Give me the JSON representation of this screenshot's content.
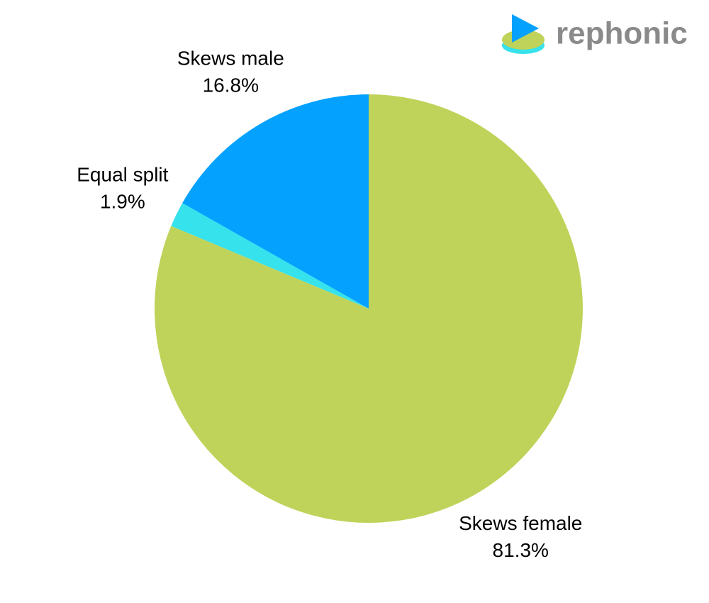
{
  "brand": "rephonic",
  "chart_data": {
    "type": "pie",
    "categories": [
      "Skews female",
      "Equal split",
      "Skews male"
    ],
    "values": [
      81.3,
      1.9,
      16.8
    ],
    "value_labels": [
      "81.3%",
      "1.9%",
      "16.8%"
    ],
    "colors": [
      "#bfd35a",
      "#36e2ec",
      "#04a1ff"
    ]
  }
}
